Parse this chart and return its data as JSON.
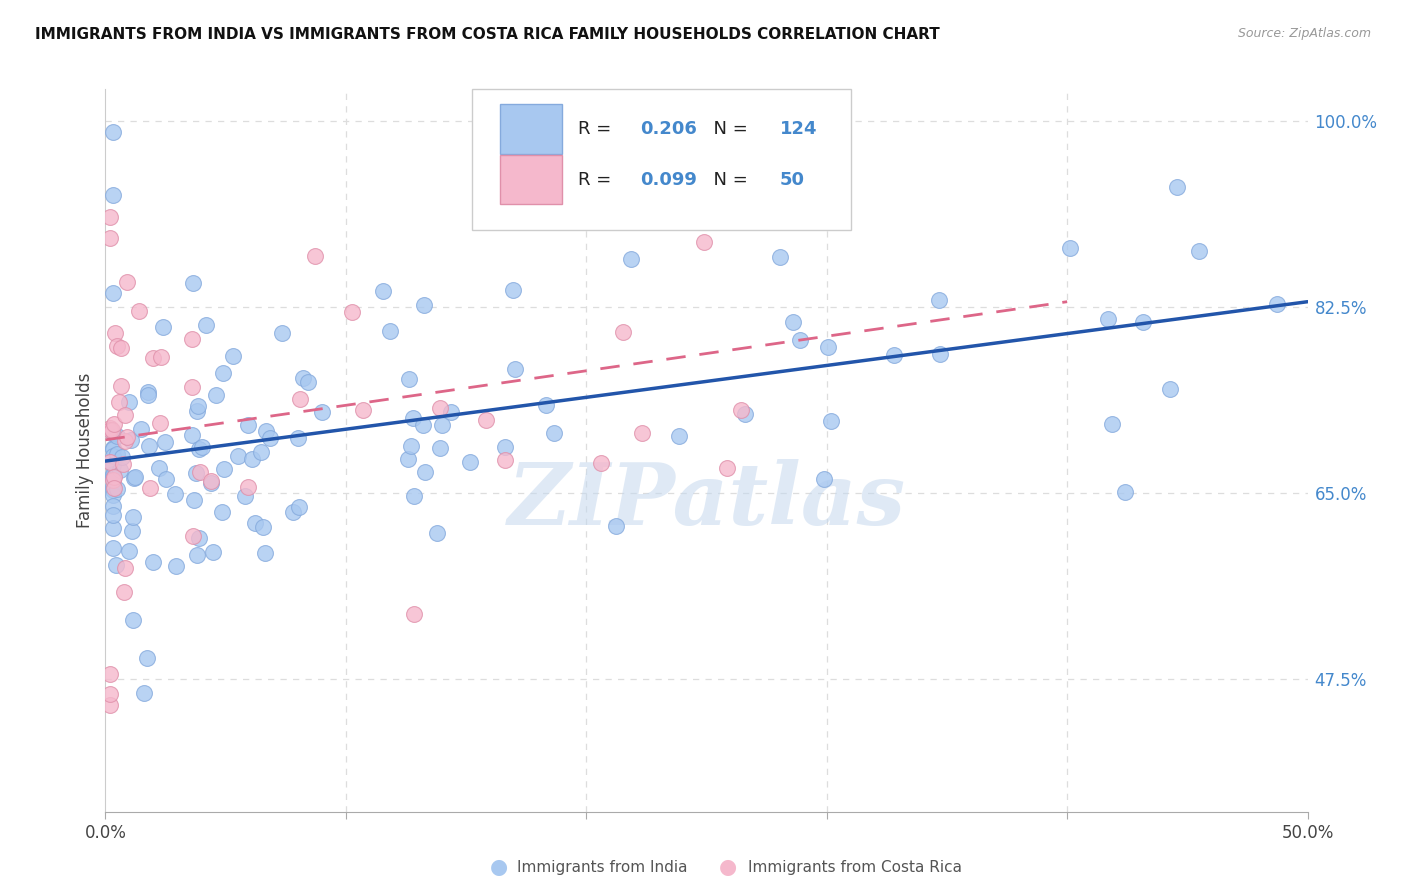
{
  "title": "IMMIGRANTS FROM INDIA VS IMMIGRANTS FROM COSTA RICA FAMILY HOUSEHOLDS CORRELATION CHART",
  "source": "Source: ZipAtlas.com",
  "ylabel": "Family Households",
  "right_yticks": [
    47.5,
    65.0,
    82.5,
    100.0
  ],
  "xlim": [
    0.0,
    50.0
  ],
  "ylim": [
    35.0,
    103.0
  ],
  "legend_india_r": "0.206",
  "legend_india_n": "124",
  "legend_cr_r": "0.099",
  "legend_cr_n": "50",
  "india_fill": "#A8C8F0",
  "india_edge": "#85AADD",
  "cr_fill": "#F5B8CC",
  "cr_edge": "#E090AA",
  "india_line_color": "#2255AA",
  "cr_line_color": "#DD6688",
  "legend_box_color": "#AABBCC",
  "watermark": "ZIPatlas",
  "tick_color": "#4488CC",
  "grid_color": "#DDDDDD",
  "bg_color": "#FFFFFF",
  "title_color": "#111111",
  "source_color": "#999999"
}
